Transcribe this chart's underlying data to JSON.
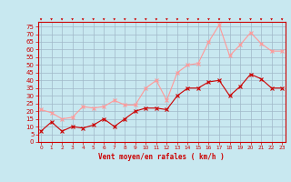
{
  "wind_mean": [
    7,
    13,
    7,
    10,
    9,
    11,
    15,
    10,
    15,
    20,
    22,
    22,
    21,
    30,
    35,
    35,
    39,
    40,
    30,
    36,
    44,
    41,
    35,
    35
  ],
  "wind_gust": [
    21,
    19,
    15,
    16,
    23,
    22,
    23,
    27,
    24,
    24,
    35,
    40,
    27,
    45,
    50,
    51,
    65,
    76,
    56,
    63,
    71,
    64,
    59,
    59
  ],
  "bg_color": "#c8e8f0",
  "grid_color": "#a0b8c8",
  "mean_color": "#cc0000",
  "gust_color": "#ff9999",
  "xlabel": "Vent moyen/en rafales ( km/h )",
  "xlabel_color": "#cc0000",
  "tick_color": "#cc0000",
  "yticks": [
    0,
    5,
    10,
    15,
    20,
    25,
    30,
    35,
    40,
    45,
    50,
    55,
    60,
    65,
    70,
    75
  ],
  "ylim": [
    0,
    78
  ],
  "xlim": [
    -0.3,
    23.3
  ]
}
